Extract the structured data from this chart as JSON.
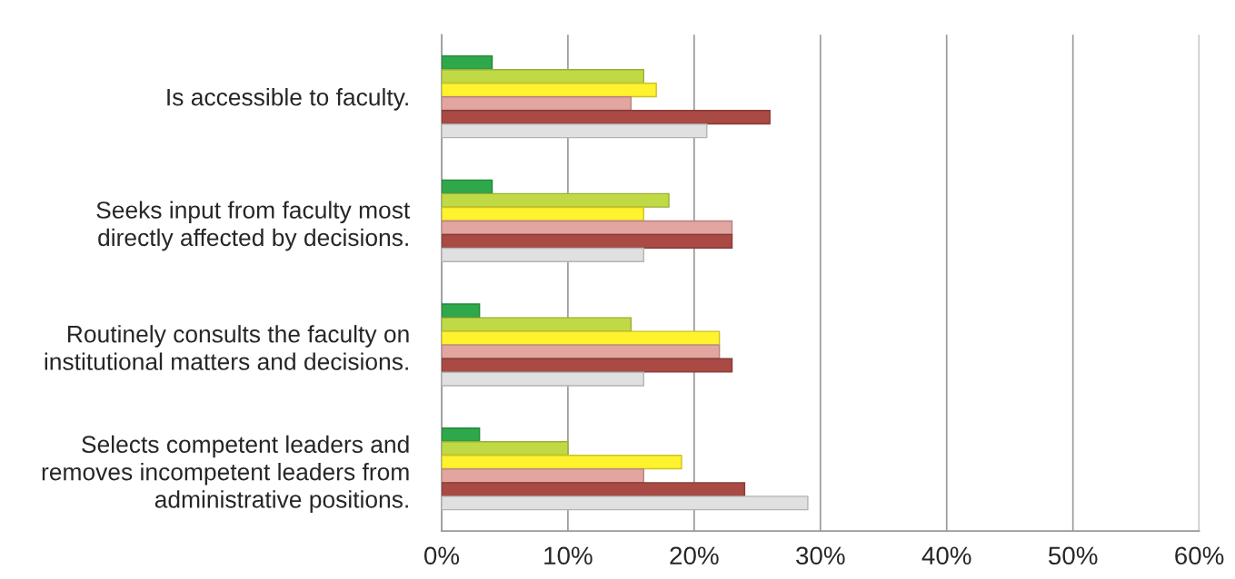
{
  "chart_data": {
    "type": "bar",
    "orientation": "horizontal",
    "categories": [
      "Is accessible to faculty.",
      "Seeks input from faculty most\ndirectly affected by decisions.",
      "Routinely consults the faculty on\ninstitutional matters and decisions.",
      "Selects competent leaders and\nremoves incompetent leaders from\nadministrative positions."
    ],
    "series": [
      {
        "color": "#2ea84a",
        "values": [
          4,
          4,
          3,
          3
        ]
      },
      {
        "color": "#c0da45",
        "values": [
          16,
          18,
          15,
          10
        ]
      },
      {
        "color": "#fff22e",
        "values": [
          17,
          16,
          22,
          19
        ]
      },
      {
        "color": "#e2a5a0",
        "values": [
          15,
          23,
          22,
          16
        ]
      },
      {
        "color": "#a94a45",
        "values": [
          26,
          23,
          23,
          24
        ]
      },
      {
        "color": "#e0e0e0",
        "values": [
          21,
          16,
          16,
          29
        ]
      }
    ],
    "xlim": [
      0,
      60
    ],
    "xticks": [
      {
        "value": 0,
        "label": "0%"
      },
      {
        "value": 10,
        "label": "10%"
      },
      {
        "value": 20,
        "label": "20%"
      },
      {
        "value": 30,
        "label": "30%"
      },
      {
        "value": 40,
        "label": "40%"
      },
      {
        "value": 50,
        "label": "50%"
      },
      {
        "value": 60,
        "label": "60%"
      }
    ],
    "grid": "x"
  }
}
